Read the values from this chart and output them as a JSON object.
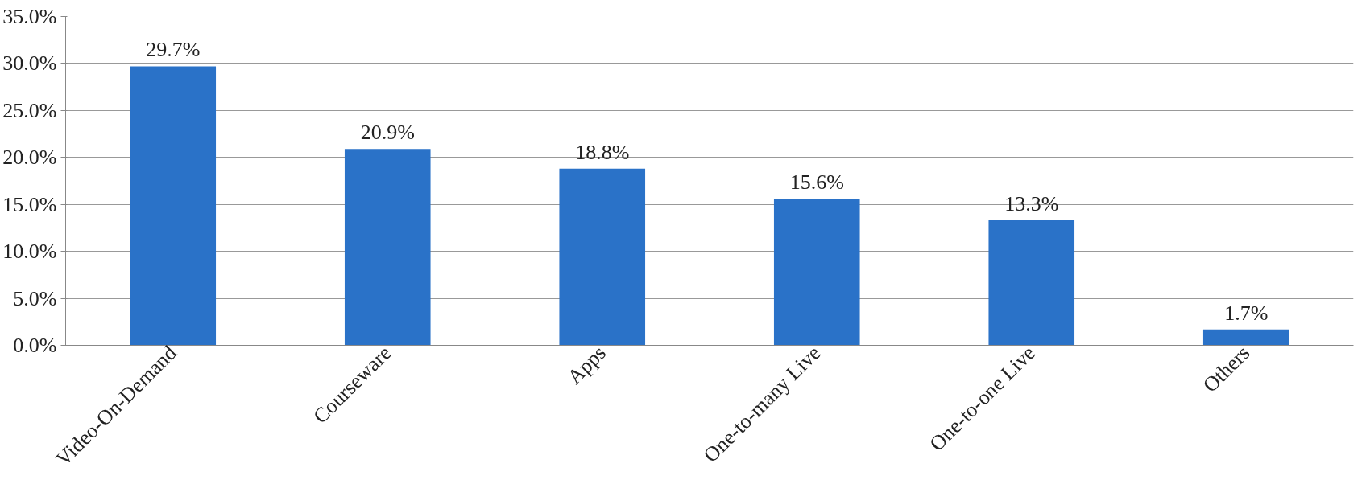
{
  "chart_data": {
    "type": "bar",
    "categories": [
      "Video-On-Demand",
      "Courseware",
      "Apps",
      "One-to-many Live",
      "One-to-one Live",
      "Others"
    ],
    "values": [
      29.7,
      20.9,
      18.8,
      15.6,
      13.3,
      1.7
    ],
    "value_labels": [
      "29.7%",
      "20.9%",
      "18.8%",
      "15.6%",
      "13.3%",
      "1.7%"
    ],
    "color": "#2a72c8",
    "ylim": [
      0,
      35
    ],
    "yticks": [
      {
        "value": 0,
        "label": "0.0%"
      },
      {
        "value": 5,
        "label": "5.0%"
      },
      {
        "value": 10,
        "label": "10.0%"
      },
      {
        "value": 15,
        "label": "15.0%"
      },
      {
        "value": 20,
        "label": "20.0%"
      },
      {
        "value": 25,
        "label": "25.0%"
      },
      {
        "value": 30,
        "label": "30.0%"
      },
      {
        "value": 35,
        "label": "35.0%"
      }
    ],
    "grid": "y"
  }
}
